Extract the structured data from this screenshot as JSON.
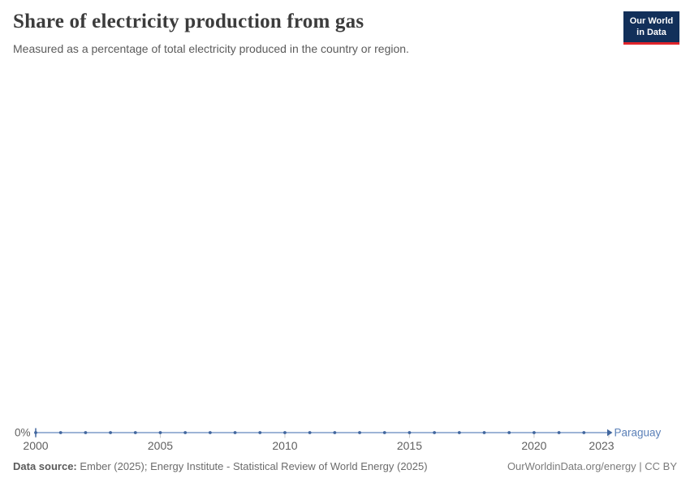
{
  "header": {
    "title": "Share of electricity production from gas",
    "subtitle": "Measured as a percentage of total electricity produced in the country or region."
  },
  "logo": {
    "line1": "Our World",
    "line2": "in Data",
    "bg_color": "#12305a",
    "accent_color": "#e0242b"
  },
  "chart_data": {
    "type": "line",
    "title": "Share of electricity production from gas",
    "x": [
      2000,
      2001,
      2002,
      2003,
      2004,
      2005,
      2006,
      2007,
      2008,
      2009,
      2010,
      2011,
      2012,
      2013,
      2014,
      2015,
      2016,
      2017,
      2018,
      2019,
      2020,
      2021,
      2022,
      2023
    ],
    "series": [
      {
        "name": "Paraguay",
        "values": [
          0,
          0,
          0,
          0,
          0,
          0,
          0,
          0,
          0,
          0,
          0,
          0,
          0,
          0,
          0,
          0,
          0,
          0,
          0,
          0,
          0,
          0,
          0,
          0
        ]
      }
    ],
    "x_ticks": [
      "2000",
      "2005",
      "2010",
      "2015",
      "2020",
      "2023"
    ],
    "y_ticks": [
      {
        "value": 0,
        "label": "0%"
      }
    ],
    "ylim": [
      0,
      0
    ],
    "grid": false,
    "legend_position": "end-of-line",
    "colors": {
      "line": "#7d9cc9",
      "marker": "#41669e",
      "entity_label": "#5b80b8",
      "axis_text": "#606060",
      "tick_mark": "#c9c9c9"
    }
  },
  "footer": {
    "source_label": "Data source:",
    "source_text": " Ember (2025); Energy Institute - Statistical Review of World Energy (2025)",
    "credit": "OurWorldinData.org/energy | CC BY"
  }
}
